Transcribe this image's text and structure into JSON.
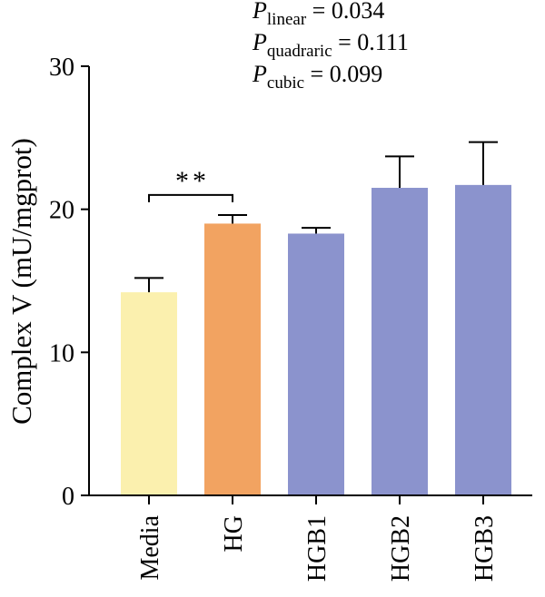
{
  "chart_data": {
    "type": "bar",
    "ylabel": "Complex V (mU/mgprot)",
    "xlabel": "",
    "ylim": [
      0,
      30
    ],
    "yticks": [
      0,
      10,
      20,
      30
    ],
    "grid": false,
    "categories": [
      "Media",
      "HG",
      "HGB1",
      "HGB2",
      "HGB3"
    ],
    "values": [
      14.2,
      19.0,
      18.3,
      21.5,
      21.7
    ],
    "errors": [
      1.0,
      0.6,
      0.4,
      2.2,
      3.0
    ],
    "colors": [
      "#fbf0ae",
      "#f2a361",
      "#8b93cd",
      "#8b93cd",
      "#8b93cd"
    ],
    "annotations": [
      {
        "p": "P",
        "sub": "linear",
        "text": " = 0.034"
      },
      {
        "p": "P",
        "sub": "quadraric",
        "text": " = 0.111"
      },
      {
        "p": "P",
        "sub": "cubic",
        "text": " = 0.099"
      }
    ],
    "significance": {
      "from": 0,
      "to": 1,
      "label": "**",
      "y": 21
    }
  }
}
